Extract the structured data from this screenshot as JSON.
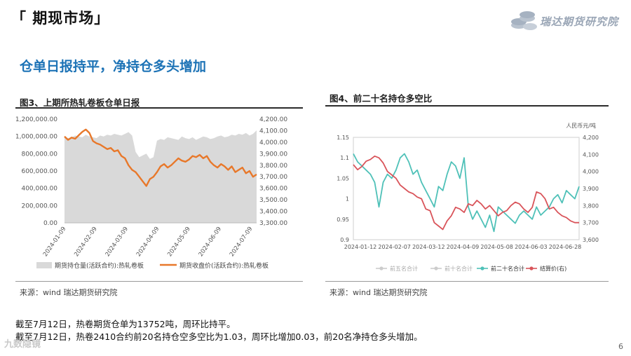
{
  "page": {
    "section_title": "「 期现市场」",
    "logo_text": "瑞达期货研究院",
    "headline": "仓单日报持平，净持仓多头增加",
    "page_number": "6",
    "watermark": "九数隐镜",
    "colors": {
      "accent": "#1d73b6",
      "orange": "#e8782a",
      "gray_area": "#d9d9d9",
      "teal": "#4fc1b8",
      "red": "#d9545a",
      "logo_gray": "#9aa6b6"
    }
  },
  "fig3": {
    "title": "图3、上期所热轧卷板仓单日报",
    "source": "来源：wind   瑞达期货研究院",
    "legend": [
      "期货持仓量(活跃合约):热轧卷板",
      "期货收盘价(活跃合约):热轧卷板"
    ]
  },
  "fig4": {
    "title": "图4、前二十名持仓多空比",
    "source": "来源：wind   瑞达期货研究院",
    "unit_label": "人民币元/吨",
    "legend": [
      "前五名合计",
      "前十名合计",
      "前二十名合计",
      "结算价(右)"
    ]
  },
  "text": {
    "line1": "截至7月12日，热卷期货仓单为13752吨，周环比持平。",
    "line2": "截至7月12日，热卷2410合约前20名持仓空多空比为1.03，周环比增加0.03，前20名净持仓多头增加。"
  },
  "chart_data": [
    {
      "type": "area+line",
      "title": "图3、上期所热轧卷板仓单日报",
      "x_ticks": [
        "2024-01-09",
        "2024-02-09",
        "2024-03-09",
        "2024-04-09",
        "2024-05-09",
        "2024-06-09",
        "2024-07-09"
      ],
      "y_left_ticks": [
        "0.00",
        "200,000.00",
        "400,000.00",
        "600,000.00",
        "800,000.00",
        "1,000,000.00",
        "1,200,000.00"
      ],
      "y_left_range": [
        0,
        1200000
      ],
      "y_right_ticks": [
        "3,300.00",
        "3,400.00",
        "3,500.00",
        "3,600.00",
        "3,700.00",
        "3,800.00",
        "3,900.00",
        "4,000.00",
        "4,100.00",
        "4,200.00"
      ],
      "y_right_range": [
        3300,
        4200
      ],
      "series": [
        {
          "name": "期货持仓量(活跃合约):热轧卷板",
          "kind": "area",
          "axis": "left",
          "values": [
            1000000,
            980000,
            990000,
            1010000,
            1000000,
            990000,
            1020000,
            1000000,
            990000,
            980000,
            1010000,
            1000000,
            1020000,
            1010000,
            1030000,
            1020000,
            1010000,
            1030000,
            1050000,
            1010000,
            820000,
            760000,
            780000,
            800000,
            740000,
            760000,
            950000,
            970000,
            960000,
            990000,
            980000,
            970000,
            960000,
            1000000,
            980000,
            970000,
            990000,
            960000,
            980000,
            1000000,
            990000,
            970000,
            980000,
            1000000,
            1010000,
            990000,
            1000000,
            1020000,
            1010000,
            1030000,
            1020000,
            1040000,
            1010000,
            1030000,
            1070000
          ]
        },
        {
          "name": "期货收盘价(活跃合约):热轧卷板",
          "kind": "line",
          "axis": "right",
          "values": [
            4050,
            4020,
            4040,
            4030,
            4060,
            4090,
            4110,
            4080,
            4010,
            3990,
            3980,
            3960,
            3940,
            3950,
            3920,
            3930,
            3880,
            3860,
            3800,
            3760,
            3740,
            3700,
            3660,
            3620,
            3680,
            3700,
            3740,
            3790,
            3810,
            3780,
            3800,
            3830,
            3860,
            3840,
            3830,
            3850,
            3880,
            3870,
            3890,
            3860,
            3880,
            3830,
            3800,
            3780,
            3810,
            3790,
            3760,
            3790,
            3740,
            3760,
            3780,
            3730,
            3750,
            3700,
            3720
          ]
        }
      ],
      "legend_position": "bottom"
    },
    {
      "type": "line",
      "title": "图4、前二十名持仓多空比",
      "x_ticks": [
        "2024-01-12",
        "2024-02-07",
        "2024-03-12",
        "2024-04-09",
        "2024-05-08",
        "2024-06-03",
        "2024-06-28"
      ],
      "y_left_ticks": [
        "0.9",
        "0.95",
        "1",
        "1.05",
        "1.1",
        "1.15"
      ],
      "y_left_range": [
        0.9,
        1.15
      ],
      "y_right_ticks": [
        "3,600",
        "3,700",
        "3,800",
        "3,900",
        "4,000",
        "4,100",
        "4,200"
      ],
      "y_right_range": [
        3600,
        4200
      ],
      "series": [
        {
          "name": "前二十名合计",
          "axis": "left",
          "values": [
            1.11,
            1.09,
            1.08,
            1.07,
            1.06,
            1.04,
            0.98,
            1.04,
            1.06,
            1.05,
            1.07,
            1.1,
            1.11,
            1.09,
            1.06,
            1.07,
            1.04,
            1.02,
            1.0,
            0.98,
            1.03,
            1.02,
            1.06,
            1.09,
            1.08,
            1.05,
            1.1,
            0.98,
            0.95,
            0.97,
            0.95,
            0.93,
            0.96,
            0.92,
            0.98,
            0.97,
            0.96,
            0.95,
            0.94,
            0.96,
            0.97,
            0.96,
            0.95,
            0.98,
            0.96,
            0.97,
            0.98,
            1.0,
            1.01,
            0.99,
            1.02,
            1.01,
            1.0,
            1.03
          ]
        },
        {
          "name": "结算价(右)",
          "axis": "right",
          "values": [
            4040,
            4010,
            4030,
            4060,
            4070,
            4090,
            4080,
            4050,
            4000,
            3980,
            3960,
            3920,
            3900,
            3880,
            3870,
            3850,
            3840,
            3780,
            3770,
            3700,
            3680,
            3660,
            3710,
            3740,
            3790,
            3780,
            3760,
            3810,
            3800,
            3830,
            3810,
            3780,
            3800,
            3770,
            3740,
            3760,
            3770,
            3800,
            3820,
            3810,
            3780,
            3760,
            3790,
            3880,
            3870,
            3840,
            3780,
            3790,
            3760,
            3740,
            3730,
            3710,
            3700,
            3700
          ]
        }
      ],
      "legend_position": "bottom"
    }
  ]
}
